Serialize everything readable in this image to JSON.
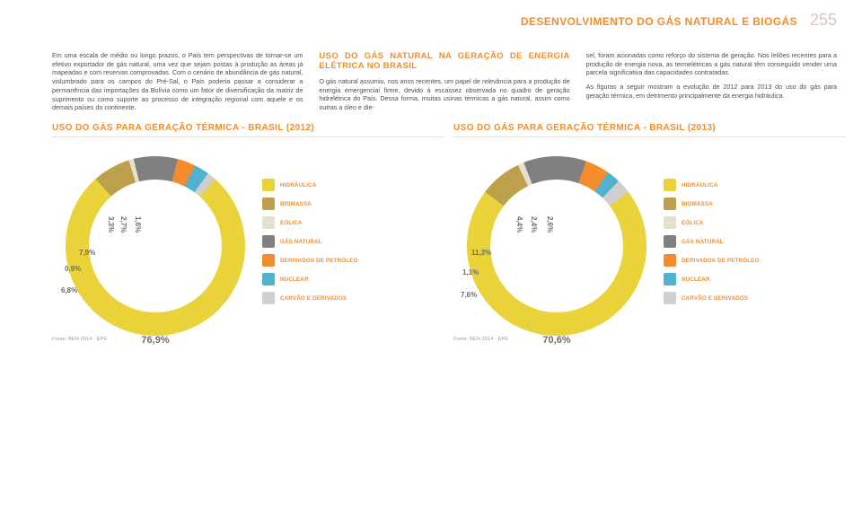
{
  "header": {
    "title": "DESENVOLVIMENTO DO GÁS NATURAL E BIOGÁS",
    "page_number": "255"
  },
  "body": {
    "col1_para": "Em uma escala de médio ou longo prazos, o País tem perspectivas de tornar-se um efetivo exportador de gás natural, uma vez que sejam postas à produção as áreas já mapeadas e com reservas comprovadas. Com o cenário de abundância de gás natural, vislumbrado para os campos do Pré-Sal, o País poderia passar a considerar a permanência das importações da Bolívia como um fator de diversificação da matriz de suprimento ou como suporte ao processo de integração regional com aquele e os demais países do continente.",
    "col2_heading": "USO DO GÁS NATURAL NA GERAÇÃO DE ENERGIA ELÉTRICA NO BRASIL",
    "col2_para": "O gás natural assumiu, nos anos recentes, um papel de relevância para a produção de energia emergencial firme, devido à escassez observada no quadro de geração hidrelétrica do País. Dessa forma, muitas usinas térmicas a gás natural, assim como outras a óleo e die-",
    "col3_para": "sel, foram acionadas como reforço do sistema de geração. Nos leilões recentes para a produção de energia nova, as termelétricas a gás natural têm conseguido vender uma parcela significativa das capacidades contratadas.",
    "col3_para2": "As figuras a seguir mostram a evolução de 2012 para 2013 do uso do gás para geração térmica, em detrimento principalmente da energia hidráulica."
  },
  "legend_items": [
    {
      "label": "HIDRÁULICA",
      "color": "#e9d23a"
    },
    {
      "label": "BIOMASSA",
      "color": "#bda04b"
    },
    {
      "label": "EÓLICA",
      "color": "#e7e0cf"
    },
    {
      "label": "GÁS NATURAL",
      "color": "#808080"
    },
    {
      "label": "DERIVADOS DE PETRÓLEO",
      "color": "#f28c2d"
    },
    {
      "label": "NUCLEAR",
      "color": "#4fb3cf"
    },
    {
      "label": "CARVÃO E DERIVADOS",
      "color": "#cfcfcf"
    }
  ],
  "chart2012": {
    "title": "USO DO GÁS PARA GERAÇÃO TÉRMICA - BRASIL (2012)",
    "segments": [
      {
        "value": 76.9,
        "color": "#e9d23a"
      },
      {
        "value": 6.8,
        "color": "#bda04b"
      },
      {
        "value": 0.9,
        "color": "#e7e0cf"
      },
      {
        "value": 7.9,
        "color": "#808080"
      },
      {
        "value": 3.3,
        "color": "#f28c2d"
      },
      {
        "value": 2.7,
        "color": "#4fb3cf"
      },
      {
        "value": 1.6,
        "color": "#cfcfcf"
      }
    ],
    "labels": {
      "big": "76,9%",
      "l1": "6,8%",
      "l2": "0,9%",
      "l3": "7,9%",
      "r1": "3,3%",
      "r2": "2,7%",
      "r3": "1,6%"
    },
    "source": "Fonte: BEN 2014 - EPE"
  },
  "chart2013": {
    "title": "USO DO GÁS PARA GERAÇÃO TÉRMICA - BRASIL (2013)",
    "segments": [
      {
        "value": 70.6,
        "color": "#e9d23a"
      },
      {
        "value": 7.6,
        "color": "#bda04b"
      },
      {
        "value": 1.1,
        "color": "#e7e0cf"
      },
      {
        "value": 11.3,
        "color": "#808080"
      },
      {
        "value": 4.4,
        "color": "#f28c2d"
      },
      {
        "value": 2.4,
        "color": "#4fb3cf"
      },
      {
        "value": 2.6,
        "color": "#cfcfcf"
      }
    ],
    "labels": {
      "big": "70,6%",
      "l1": "7,6%",
      "l2": "1,1%",
      "l3": "11,3%",
      "r1": "4,4%",
      "r2": "2,4%",
      "r3": "2,6%"
    },
    "source": "Fonte: BEN 2014 - EPE"
  }
}
